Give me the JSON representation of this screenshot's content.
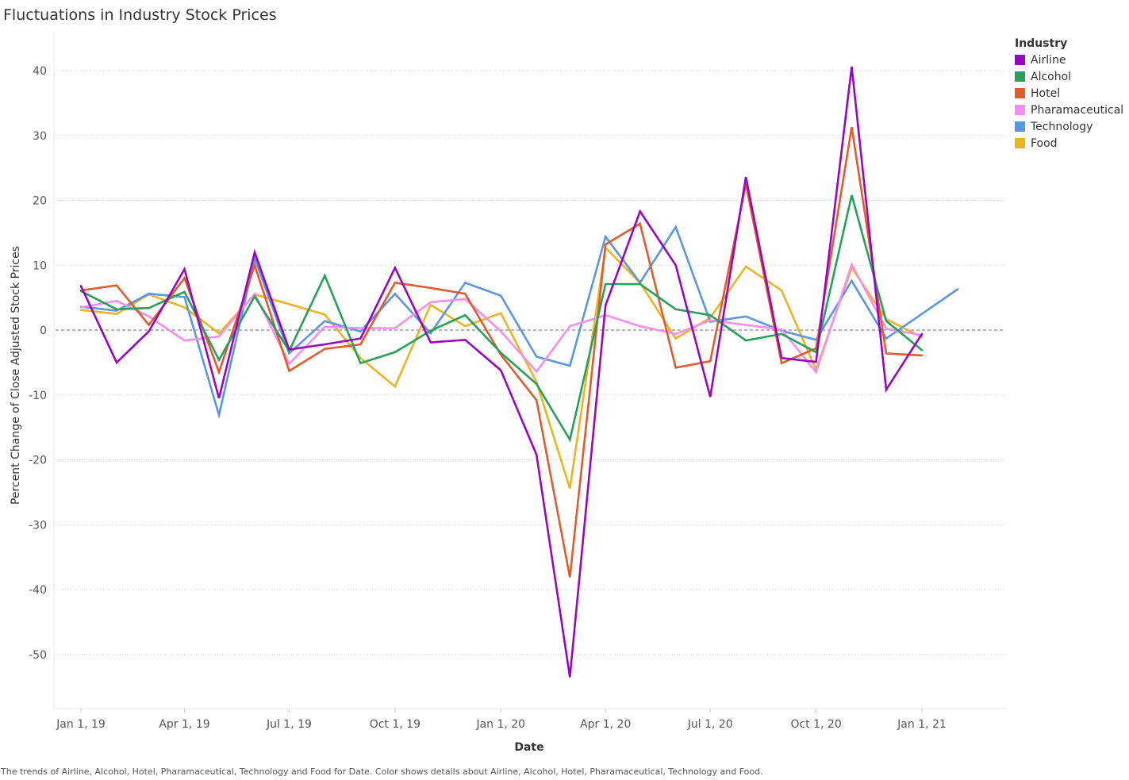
{
  "chart_data": {
    "type": "line",
    "title": "Fluctuations in Industry Stock Prices",
    "xlabel": "Date",
    "ylabel": "Percent Change of Close Adjusted Stock Prices",
    "x_ticks": [
      "Jan 1, 19",
      "Apr 1, 19",
      "Jul 1, 19",
      "Oct 1, 19",
      "Jan 1, 20",
      "Apr 1, 20",
      "Jul 1, 20",
      "Oct 1, 20",
      "Jan 1, 21"
    ],
    "y_ticks": [
      40,
      30,
      20,
      10,
      0,
      -10,
      -20,
      -30,
      -40,
      -50
    ],
    "ylim": [
      -58,
      45
    ],
    "grid": true,
    "zero_line": "dashed",
    "legend_placement": "right",
    "legend_title": "Industry",
    "x": [
      "2019-01-01",
      "2019-02-01",
      "2019-03-01",
      "2019-04-01",
      "2019-05-01",
      "2019-06-01",
      "2019-07-01",
      "2019-08-01",
      "2019-09-01",
      "2019-10-01",
      "2019-11-01",
      "2019-12-01",
      "2020-01-01",
      "2020-02-01",
      "2020-03-01",
      "2020-04-01",
      "2020-05-01",
      "2020-06-01",
      "2020-07-01",
      "2020-08-01",
      "2020-09-01",
      "2020-10-01",
      "2020-11-01",
      "2020-12-01",
      "2021-01-01",
      "2021-02-01"
    ],
    "series": [
      {
        "name": "Airline",
        "color": "#9a05c3",
        "values": [
          6.8,
          -5.0,
          -0.2,
          9.4,
          -10.5,
          12.0,
          -3.0,
          -2.2,
          -1.3,
          9.6,
          -1.9,
          -1.5,
          -6.2,
          -19.2,
          -53.5,
          3.8,
          18.3,
          10.0,
          -10.3,
          23.6,
          -4.3,
          -4.9,
          40.6,
          -9.2,
          -0.6,
          null
        ]
      },
      {
        "name": "Alcohol",
        "color": "#26a05b",
        "values": [
          6.0,
          3.2,
          3.4,
          5.9,
          -4.6,
          5.2,
          -3.2,
          8.4,
          -5.1,
          -3.4,
          -0.1,
          2.3,
          -3.5,
          -8.3,
          -16.9,
          7.1,
          7.1,
          3.2,
          2.3,
          -1.6,
          -0.6,
          -3.4,
          20.8,
          1.4,
          -3.1,
          null
        ]
      },
      {
        "name": "Hotel",
        "color": "#e15b2d",
        "values": [
          6.1,
          6.9,
          0.8,
          8.0,
          -6.5,
          10.0,
          -6.3,
          -2.9,
          -2.2,
          7.3,
          6.5,
          5.6,
          -3.8,
          -10.8,
          -38.1,
          13.2,
          16.4,
          -5.8,
          -4.8,
          22.5,
          -5.1,
          -2.8,
          31.3,
          -3.6,
          -3.9,
          null
        ]
      },
      {
        "name": "Pharamaceutical",
        "color": "#f78df0",
        "values": [
          3.5,
          4.5,
          2.1,
          -1.6,
          -1.0,
          5.6,
          -5.2,
          0.5,
          0.3,
          0.3,
          4.3,
          4.8,
          -0.2,
          -6.4,
          0.6,
          2.3,
          0.6,
          -0.6,
          1.5,
          0.8,
          0.1,
          -6.5,
          10.1,
          0.2,
          -0.8,
          null
        ]
      },
      {
        "name": "Technology",
        "color": "#5b97e0",
        "values": [
          3.6,
          3.0,
          5.6,
          5.1,
          -13.1,
          11.1,
          -3.6,
          1.4,
          -0.2,
          5.6,
          -0.5,
          7.3,
          5.3,
          -4.1,
          -5.5,
          14.4,
          7.3,
          15.9,
          1.3,
          2.1,
          -0.1,
          -1.5,
          7.6,
          -1.3,
          null,
          6.3
        ]
      },
      {
        "name": "Food",
        "color": "#ebb422",
        "values": [
          3.1,
          2.5,
          5.5,
          3.5,
          -0.5,
          5.5,
          4.0,
          2.4,
          -4.3,
          -8.7,
          3.9,
          0.6,
          2.6,
          -8.0,
          -24.4,
          12.7,
          7.3,
          -1.3,
          1.9,
          9.8,
          6.1,
          -6.1,
          9.6,
          1.7,
          -1.1,
          null
        ]
      }
    ]
  },
  "footer": "The trends of Airline, Alcohol, Hotel, Pharamaceutical, Technology and Food for Date.  Color shows details about Airline, Alcohol, Hotel, Pharamaceutical, Technology and Food."
}
